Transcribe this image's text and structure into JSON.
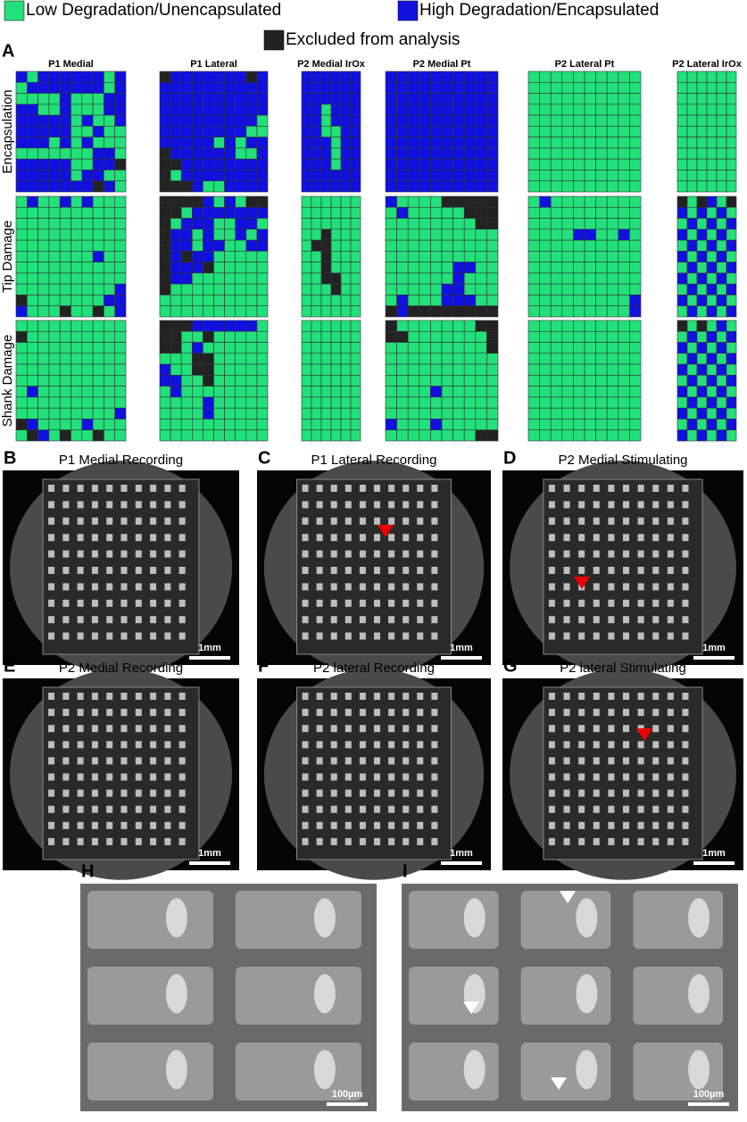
{
  "legend": {
    "items": [
      {
        "label": "Low Degradation/Unencapsulated",
        "color": "#22e07a"
      },
      {
        "label": "High Degradation/Encapsulated",
        "color": "#1010e0"
      },
      {
        "label": "Excluded from analysis",
        "color": "#222222"
      }
    ]
  },
  "panel_a": {
    "label": "A",
    "row_labels": [
      "Encapsulation",
      "Tip Damage",
      "Shank Damage"
    ],
    "columns": [
      {
        "title": "P1 Medial",
        "grids": [
          [
            "1011111101",
            "0111111101",
            "0000100011",
            "1100100011",
            "1111101001",
            "1111100100",
            "1110101000",
            "0000000110",
            "1111100112",
            "1111101100",
            "1111111210"
          ],
          [
            "0100101000",
            "0000000000",
            "0000000000",
            "0000000000",
            "0000000000",
            "0000000100",
            "0000000000",
            "0000000000",
            "0000000001",
            "2000000011",
            "1000200201"
          ],
          [
            "0000000000",
            "2000000000",
            "0000000000",
            "0000000000",
            "0000000000",
            "0000000000",
            "0100000000",
            "0000000000",
            "0000000001",
            "2100001000",
            "0210200200"
          ]
        ]
      },
      {
        "title": "P1 Lateral",
        "grids": [
          [
            "2111111121",
            "1111111111",
            "1111111111",
            "1111111111",
            "1111111110",
            "1111111100",
            "1111101011",
            "2111111001",
            "2211111111",
            "2011111111",
            "2221001111"
          ],
          [
            "2222101022",
            "2201111111",
            "2011100110",
            "2110100101",
            "2110110011",
            "2121100000",
            "2111200000",
            "2110000000",
            "2000000000",
            "0000000000",
            "0000000000"
          ],
          [
            "2221111110",
            "2200200000",
            "2201000000",
            "0002200000",
            "1002200000",
            "1100200000",
            "0100000000",
            "0000100000",
            "0000100000",
            "0000000000",
            "0000000000"
          ]
        ]
      },
      {
        "title": "P2 Medial IrOx",
        "grids": [
          [
            "111111",
            "111111",
            "111111",
            "110111",
            "110111",
            "110011",
            "111011",
            "111011",
            "111011",
            "111111",
            "111111"
          ],
          [
            "000000",
            "000000",
            "000000",
            "002000",
            "022000",
            "002000",
            "002000",
            "002200",
            "000200",
            "000000",
            "000000"
          ],
          [
            "000000",
            "000000",
            "000000",
            "000000",
            "000000",
            "000000",
            "000000",
            "000000",
            "000000",
            "000000",
            "000000"
          ]
        ]
      },
      {
        "title": "P2 Medial Pt",
        "grids": [
          [
            "1111111111",
            "1111111111",
            "1111111111",
            "1111111111",
            "1111111111",
            "1111111111",
            "1111111111",
            "1111111111",
            "1111111111",
            "1111111111",
            "1111111111"
          ],
          [
            "1000022222",
            "0100000222",
            "0000000022",
            "0000000000",
            "0000000000",
            "0000000000",
            "0000001100",
            "0000001000",
            "0000011000",
            "0100011100",
            "2122222222"
          ],
          [
            "2000000022",
            "2200000002",
            "0000000002",
            "0000000000",
            "0000000000",
            "0000000000",
            "0000100000",
            "0000000000",
            "0000000000",
            "1000100000",
            "0000000022"
          ]
        ]
      },
      {
        "title": "P2 Lateral Pt",
        "grids": [
          [
            "0000000000",
            "0000000000",
            "0000000000",
            "0000000000",
            "0000000000",
            "0000000000",
            "0000000000",
            "0000000000",
            "0000000000",
            "0000000000",
            "0000000000"
          ],
          [
            "0100000000",
            "0000000000",
            "0000000000",
            "0000110010",
            "0000000000",
            "0000000000",
            "0000000000",
            "0000000000",
            "0000000000",
            "0000000001",
            "0000000001"
          ],
          [
            "0000000000",
            "0000000000",
            "0000000000",
            "0000000000",
            "0000000000",
            "0000000000",
            "0000000000",
            "0000000000",
            "0000000000",
            "0000000000",
            "0000000000"
          ]
        ]
      },
      {
        "title": "P2 Lateral IrOx",
        "grids": [
          [
            "000000",
            "000000",
            "000000",
            "000000",
            "000000",
            "000000",
            "000000",
            "000000",
            "000000",
            "000000",
            "000000"
          ],
          [
            "202102",
            "101010",
            "010101",
            "101010",
            "010101",
            "101010",
            "010101",
            "101010",
            "010101",
            "101010",
            "010101"
          ],
          [
            "202010",
            "010101",
            "101010",
            "010101",
            "101010",
            "010101",
            "101010",
            "010101",
            "101010",
            "010101",
            "101010"
          ]
        ]
      }
    ]
  },
  "images": [
    {
      "label": "B",
      "title": "P1 Medial Recording",
      "scale": "1mm"
    },
    {
      "label": "C",
      "title": "P1 Lateral Recording",
      "scale": "1mm"
    },
    {
      "label": "D",
      "title": "P2 Medial Stimulating",
      "scale": "1mm"
    },
    {
      "label": "E",
      "title": "P2 Medial Recording",
      "scale": "1mm"
    },
    {
      "label": "F",
      "title": "P2 lateral Recording",
      "scale": "1mm"
    },
    {
      "label": "G",
      "title": "P2 lateral Stimulating",
      "scale": "1mm"
    },
    {
      "label": "H",
      "scale": "100µm"
    },
    {
      "label": "I",
      "scale": "100µm"
    }
  ]
}
